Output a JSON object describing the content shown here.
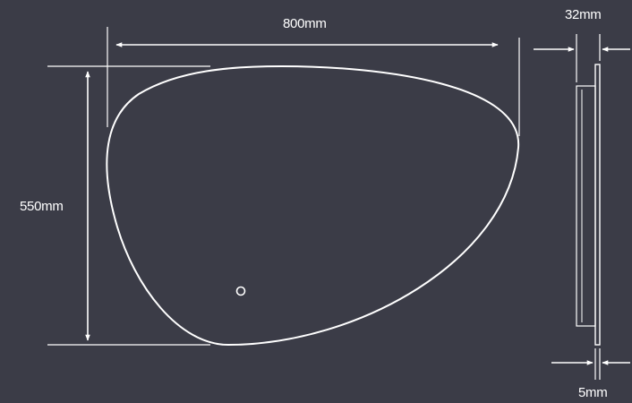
{
  "diagram": {
    "background_color": "#3b3c47",
    "line_color": "#ffffff",
    "dimensions": {
      "width": "800mm",
      "height": "550mm",
      "depth": "32mm",
      "glass_thickness": "5mm"
    },
    "front_view": {
      "shape": "pebble",
      "touch_sensor": "circle-icon"
    }
  }
}
